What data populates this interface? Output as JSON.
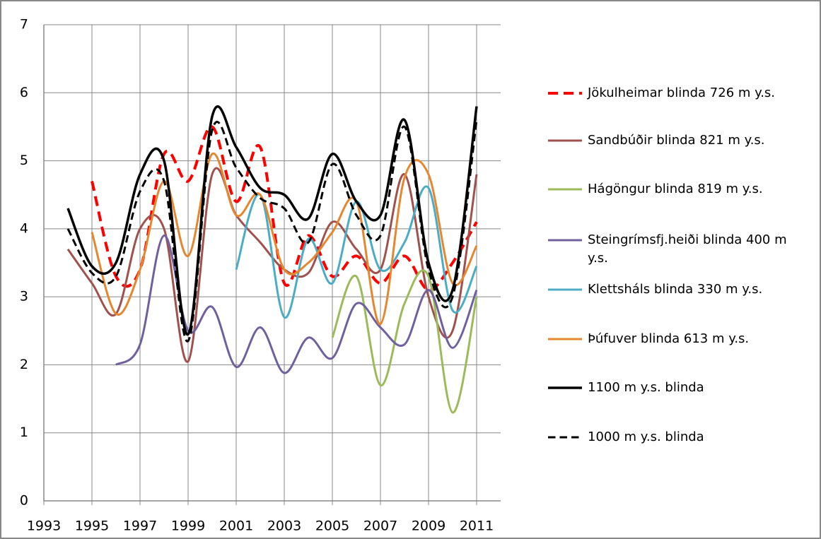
{
  "chart_data": {
    "type": "line",
    "x": [
      1994,
      1995,
      1996,
      1997,
      1998,
      1999,
      2000,
      2001,
      2002,
      2003,
      2004,
      2005,
      2006,
      2007,
      2008,
      2009,
      2010,
      2011
    ],
    "xlim": [
      1993,
      2012
    ],
    "xticks": [
      1993,
      1995,
      1997,
      1999,
      2001,
      2003,
      2005,
      2007,
      2009,
      2011
    ],
    "ylim": [
      0,
      7
    ],
    "yticks": [
      0,
      1,
      2,
      3,
      4,
      5,
      6,
      7
    ],
    "grid": true,
    "smooth": true,
    "legend": "right",
    "series": [
      {
        "name": "Jökulheimar blinda 726 m y.s.",
        "color": "#ff0000",
        "linestyle": "--",
        "width": 4,
        "values": [
          null,
          4.7,
          3.3,
          3.4,
          5.1,
          4.7,
          5.5,
          4.4,
          5.2,
          3.2,
          3.9,
          3.3,
          3.6,
          3.2,
          3.6,
          3.1,
          3.5,
          4.1
        ]
      },
      {
        "name": "Sandbúðir blinda 821 m y.s.",
        "color": "#a0504d",
        "linestyle": "-",
        "width": 3,
        "values": [
          3.7,
          3.2,
          2.75,
          4.0,
          4.0,
          2.05,
          4.8,
          4.2,
          3.8,
          3.4,
          3.35,
          4.1,
          3.7,
          3.4,
          4.8,
          3.0,
          2.5,
          4.8
        ]
      },
      {
        "name": "Hágöngur blinda 819 m y.s.",
        "color": "#9bbb59",
        "linestyle": "-",
        "width": 3,
        "values": [
          null,
          null,
          null,
          null,
          null,
          null,
          null,
          null,
          null,
          null,
          null,
          2.4,
          3.3,
          1.7,
          2.9,
          3.3,
          1.3,
          3.0
        ]
      },
      {
        "name": "Steingrímsfj.heiði blinda 400 m y.s.",
        "color": "#7060a0",
        "linestyle": "-",
        "width": 3,
        "values": [
          null,
          null,
          2.0,
          2.3,
          3.9,
          2.5,
          2.85,
          1.97,
          2.55,
          1.88,
          2.4,
          2.1,
          2.9,
          2.55,
          2.3,
          3.1,
          2.25,
          3.1
        ]
      },
      {
        "name": "Klettsháls blinda 330 m y.s.",
        "color": "#4bacc6",
        "linestyle": "-",
        "width": 3,
        "values": [
          null,
          null,
          null,
          null,
          null,
          null,
          null,
          3.4,
          4.5,
          2.7,
          3.85,
          3.2,
          4.4,
          3.4,
          3.8,
          4.6,
          2.8,
          3.45
        ]
      },
      {
        "name": "Þúfuver blinda 613 m y.s.",
        "color": "#e6862e",
        "linestyle": "-",
        "width": 3,
        "values": [
          null,
          3.95,
          2.75,
          3.4,
          4.7,
          3.6,
          5.1,
          4.2,
          4.5,
          3.4,
          3.5,
          3.95,
          4.4,
          2.6,
          4.75,
          4.8,
          3.2,
          3.75
        ]
      },
      {
        "name": "1100 m y.s. blinda",
        "color": "#000000",
        "linestyle": "-",
        "width": 3.5,
        "values": [
          4.3,
          3.45,
          3.5,
          4.8,
          5.0,
          2.45,
          5.65,
          5.2,
          4.6,
          4.5,
          4.15,
          5.1,
          4.4,
          4.2,
          5.6,
          3.5,
          3.1,
          5.8
        ]
      },
      {
        "name": "1000 m y.s. blinda",
        "color": "#000000",
        "linestyle": "--",
        "width": 3,
        "values": [
          4.0,
          3.35,
          3.3,
          4.55,
          4.7,
          2.35,
          5.45,
          4.9,
          4.45,
          4.3,
          3.8,
          4.95,
          4.2,
          3.9,
          5.5,
          3.4,
          3.0,
          5.6
        ]
      }
    ]
  }
}
